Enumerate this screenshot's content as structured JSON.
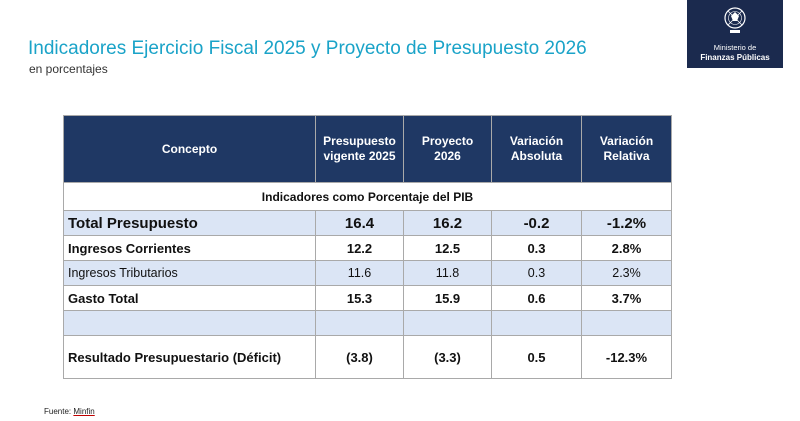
{
  "header": {
    "title": "Indicadores Ejercicio Fiscal 2025 y Proyecto de Presupuesto 2026",
    "subtitle": "en porcentajes"
  },
  "logo": {
    "icon": "guatemala-coat-of-arms-icon",
    "line1": "Ministerio de",
    "line2": "Finanzas Públicas"
  },
  "table": {
    "columns": [
      "Concepto",
      "Presupuesto vigente 2025",
      "Proyecto 2026",
      "Variación Absoluta",
      "Variación Relativa"
    ],
    "section": "Indicadores como Porcentaje del PIB",
    "rows": [
      {
        "concepto": "Total Presupuesto",
        "vigente": "16.4",
        "proyecto": "16.2",
        "abs": "-0.2",
        "rel": "-1.2%"
      },
      {
        "concepto": "Ingresos Corrientes",
        "vigente": "12.2",
        "proyecto": "12.5",
        "abs": "0.3",
        "rel": "2.8%"
      },
      {
        "concepto": "Ingresos Tributarios",
        "vigente": "11.6",
        "proyecto": "11.8",
        "abs": "0.3",
        "rel": "2.3%"
      },
      {
        "concepto": "Gasto Total",
        "vigente": "15.3",
        "proyecto": "15.9",
        "abs": "0.6",
        "rel": "3.7%"
      },
      {
        "concepto": "",
        "vigente": "",
        "proyecto": "",
        "abs": "",
        "rel": ""
      },
      {
        "concepto": "Resultado Presupuestario (Déficit)",
        "vigente": "(3.8)",
        "proyecto": "(3.3)",
        "abs": "0.5",
        "rel": "-12.3%"
      }
    ]
  },
  "footer": {
    "source_label": "Fuente:",
    "source_value": "Minfin"
  },
  "colors": {
    "title": "#1aa3c8",
    "header_bg": "#1f3864",
    "band": "#dbe5f5",
    "logo_bg": "#1b2a4e"
  }
}
